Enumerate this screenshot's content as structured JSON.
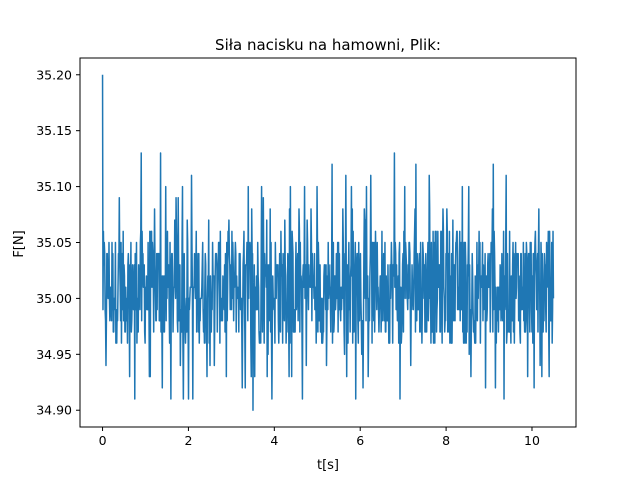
{
  "chart_data": {
    "type": "line",
    "title": "Siła nacisku na hamowni, Plik:",
    "xlabel": "t[s]",
    "ylabel": "F[N]",
    "xlim": [
      -0.525,
      11.025
    ],
    "ylim": [
      34.885,
      35.215
    ],
    "xticks": [
      0,
      2,
      4,
      6,
      8,
      10
    ],
    "yticks": [
      34.9,
      34.95,
      35.0,
      35.05,
      35.1,
      35.15,
      35.2
    ],
    "ytick_labels": [
      "34.90",
      "34.95",
      "35.00",
      "35.05",
      "35.10",
      "35.15",
      "35.20"
    ],
    "grid": false,
    "color": "#1f77b4",
    "series": [
      {
        "name": "",
        "x_start": 0,
        "x_end": 10.5,
        "sample_count": 1050,
        "spikes": [
          {
            "x": 0.0,
            "y": 35.2
          },
          {
            "x": 0.08,
            "y": 34.94
          },
          {
            "x": 0.9,
            "y": 35.13
          },
          {
            "x": 1.35,
            "y": 35.13
          },
          {
            "x": 0.75,
            "y": 34.91
          },
          {
            "x": 1.88,
            "y": 34.91
          },
          {
            "x": 2.1,
            "y": 34.91
          },
          {
            "x": 3.5,
            "y": 34.9
          },
          {
            "x": 3.25,
            "y": 34.92
          },
          {
            "x": 4.4,
            "y": 34.93
          },
          {
            "x": 5.35,
            "y": 35.12
          },
          {
            "x": 5.9,
            "y": 34.91
          },
          {
            "x": 6.8,
            "y": 35.13
          },
          {
            "x": 7.3,
            "y": 35.12
          },
          {
            "x": 9.1,
            "y": 35.12
          },
          {
            "x": 9.35,
            "y": 34.91
          },
          {
            "x": 10.05,
            "y": 34.92
          },
          {
            "x": 10.45,
            "y": 34.98
          }
        ],
        "typical_range": [
          34.96,
          35.06
        ],
        "mean": 35.01
      }
    ]
  }
}
